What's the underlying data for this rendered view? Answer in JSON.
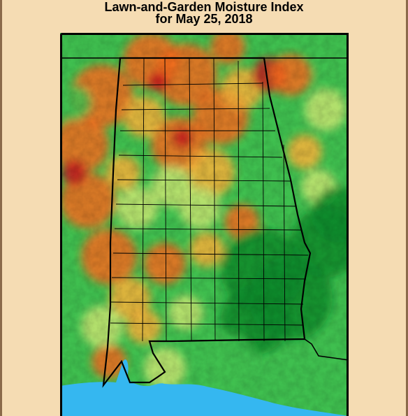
{
  "title": {
    "line1": "Lawn-and-Garden Moisture Index",
    "line2": "for May 25, 2018"
  },
  "colors": {
    "page_background": "#f5dcb3",
    "very_dry": "#c0151c",
    "dry": "#f26b1d",
    "slightly_dry": "#f7b03a",
    "near_normal": "#c6e572",
    "moist": "#3fbf4f",
    "wet": "#0a8a2a",
    "water": "#35b7f0",
    "borders": "#000000"
  },
  "map": {
    "region": "Alabama",
    "features": [
      "moisture-field",
      "county-borders",
      "state-border",
      "gulf-of-mexico"
    ]
  }
}
